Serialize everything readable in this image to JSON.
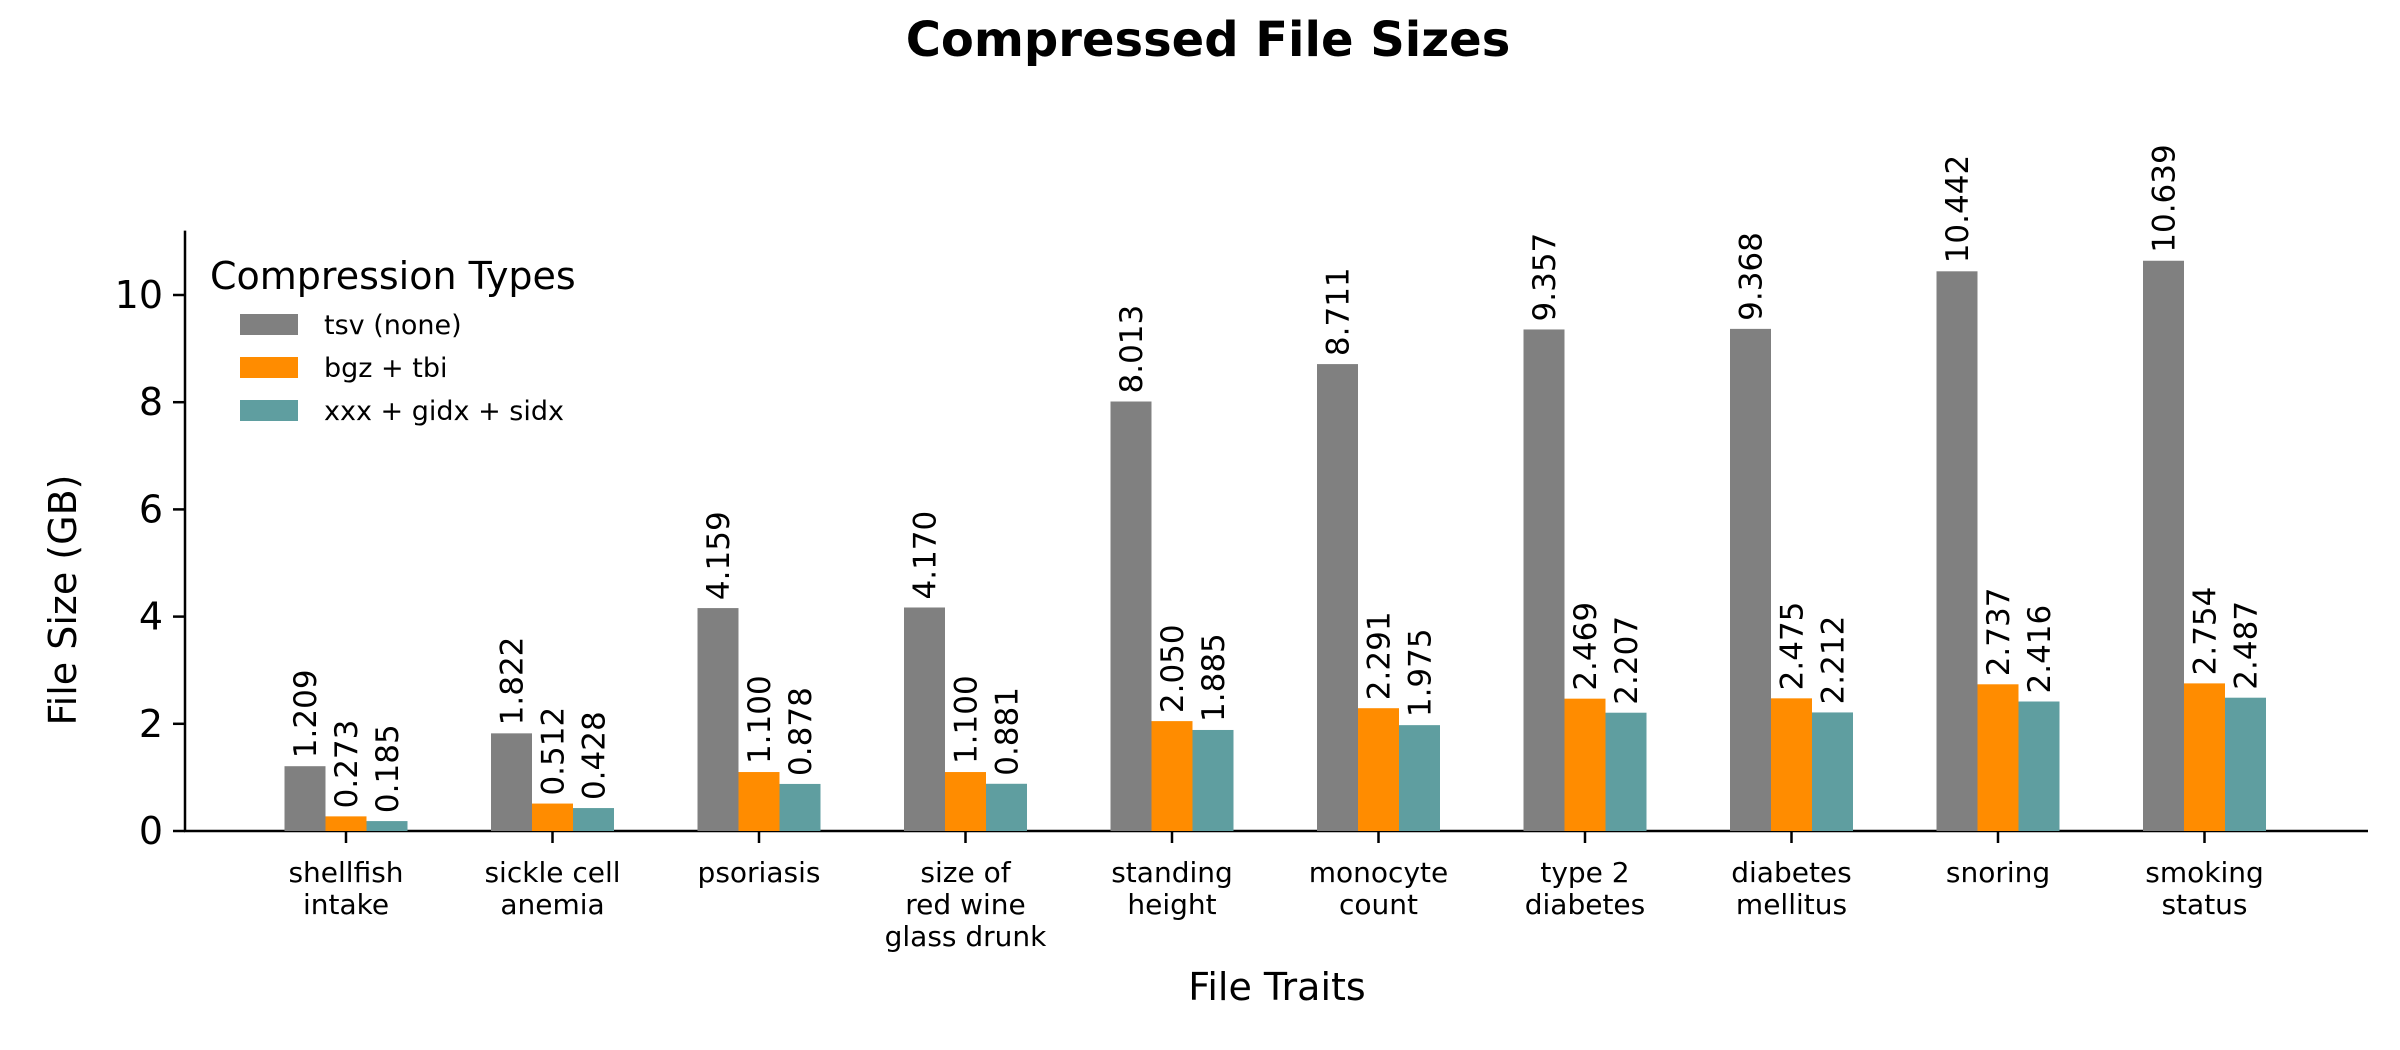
{
  "chart_data": {
    "type": "bar",
    "title": "Compressed File Sizes",
    "xlabel": "File Traits",
    "ylabel": "File Size (GB)",
    "ylim": [
      0,
      11.2
    ],
    "yticks": [
      0,
      2,
      4,
      6,
      8,
      10
    ],
    "grid": false,
    "legend_title": "Compression Types",
    "legend_position": "top-left",
    "categories": [
      [
        "shellfish",
        "intake"
      ],
      [
        "sickle cell",
        "anemia"
      ],
      [
        "psoriasis"
      ],
      [
        "size of",
        "red wine",
        "glass drunk"
      ],
      [
        "standing",
        "height"
      ],
      [
        "monocyte",
        "count"
      ],
      [
        "type 2",
        "diabetes"
      ],
      [
        "diabetes",
        "mellitus"
      ],
      [
        "snoring"
      ],
      [
        "smoking",
        "status"
      ]
    ],
    "series": [
      {
        "name": "tsv (none)",
        "color": "#808080",
        "values": [
          1.209,
          1.822,
          4.159,
          4.17,
          8.013,
          8.711,
          9.357,
          9.368,
          10.442,
          10.639
        ],
        "labels": [
          "1.209",
          "1.822",
          "4.159",
          "4.170",
          "8.013",
          "8.711",
          "9.357",
          "9.368",
          "10.442",
          "10.639"
        ]
      },
      {
        "name": "bgz + tbi",
        "color": "#ff8c00",
        "values": [
          0.273,
          0.512,
          1.1,
          1.1,
          2.05,
          2.291,
          2.469,
          2.475,
          2.737,
          2.754
        ],
        "labels": [
          "0.273",
          "0.512",
          "1.100",
          "1.100",
          "2.050",
          "2.291",
          "2.469",
          "2.475",
          "2.737",
          "2.754"
        ]
      },
      {
        "name": "xxx + gidx + sidx",
        "color": "#5f9ea0",
        "values": [
          0.185,
          0.428,
          0.878,
          0.881,
          1.885,
          1.975,
          2.207,
          2.212,
          2.416,
          2.487
        ],
        "labels": [
          "0.185",
          "0.428",
          "0.878",
          "0.881",
          "1.885",
          "1.975",
          "2.207",
          "2.212",
          "2.416",
          "2.487"
        ]
      }
    ]
  }
}
